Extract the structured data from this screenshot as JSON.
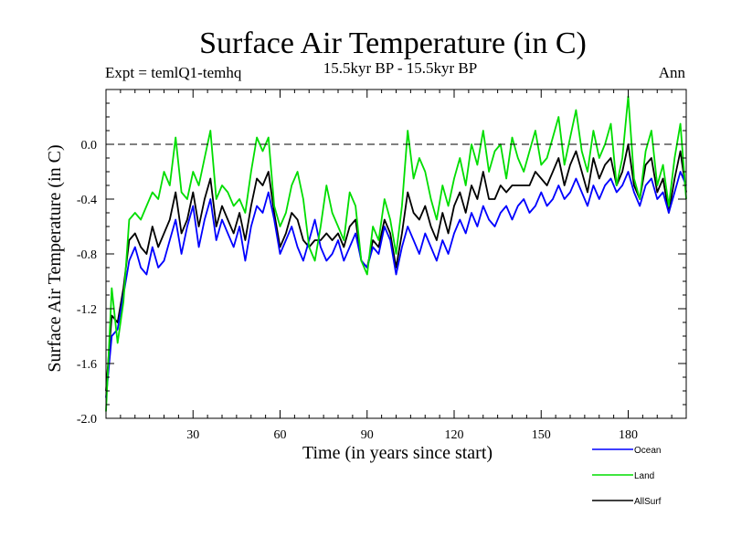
{
  "chart_data": {
    "type": "line",
    "title": "Surface Air Temperature (in C)",
    "left_label": "Expt = temlQ1-temhq",
    "center_label": "15.5kyr BP - 15.5kyr BP",
    "right_label": "Ann",
    "xlabel": "Time (in years since start)",
    "ylabel": "Surface Air Temperature (in C)",
    "xlim": [
      0,
      200
    ],
    "ylim": [
      -2.0,
      0.4
    ],
    "xticks": [
      30,
      60,
      90,
      120,
      150,
      180
    ],
    "xtick_labels": [
      "30",
      "60",
      "90",
      "120",
      "150",
      "180"
    ],
    "yticks": [
      -2.0,
      -1.6,
      -1.2,
      -0.8,
      -0.4,
      0.0
    ],
    "ytick_labels": [
      "-2.0",
      "-1.6",
      "-1.2",
      "-0.8",
      "-0.4",
      "0.0"
    ],
    "reference_line": 0.0,
    "x": [
      0,
      2,
      4,
      6,
      8,
      10,
      12,
      14,
      16,
      18,
      20,
      22,
      24,
      26,
      28,
      30,
      32,
      34,
      36,
      38,
      40,
      42,
      44,
      46,
      48,
      50,
      52,
      54,
      56,
      58,
      60,
      62,
      64,
      66,
      68,
      70,
      72,
      74,
      76,
      78,
      80,
      82,
      84,
      86,
      88,
      90,
      92,
      94,
      96,
      98,
      100,
      102,
      104,
      106,
      108,
      110,
      112,
      114,
      116,
      118,
      120,
      122,
      124,
      126,
      128,
      130,
      132,
      134,
      136,
      138,
      140,
      142,
      144,
      146,
      148,
      150,
      152,
      154,
      156,
      158,
      160,
      162,
      164,
      166,
      168,
      170,
      172,
      174,
      176,
      178,
      180,
      182,
      184,
      186,
      188,
      190,
      192,
      194,
      196,
      198,
      200
    ],
    "series": [
      {
        "name": "Ocean",
        "color": "#0000ff",
        "values": [
          -1.85,
          -1.4,
          -1.35,
          -1.1,
          -0.85,
          -0.75,
          -0.9,
          -0.95,
          -0.75,
          -0.9,
          -0.85,
          -0.7,
          -0.55,
          -0.8,
          -0.6,
          -0.45,
          -0.75,
          -0.55,
          -0.4,
          -0.7,
          -0.55,
          -0.65,
          -0.75,
          -0.6,
          -0.85,
          -0.6,
          -0.45,
          -0.5,
          -0.35,
          -0.55,
          -0.8,
          -0.7,
          -0.6,
          -0.75,
          -0.85,
          -0.7,
          -0.55,
          -0.75,
          -0.85,
          -0.8,
          -0.7,
          -0.85,
          -0.75,
          -0.65,
          -0.85,
          -0.9,
          -0.75,
          -0.8,
          -0.6,
          -0.7,
          -0.95,
          -0.75,
          -0.6,
          -0.7,
          -0.8,
          -0.65,
          -0.75,
          -0.85,
          -0.7,
          -0.8,
          -0.65,
          -0.55,
          -0.65,
          -0.5,
          -0.6,
          -0.45,
          -0.55,
          -0.6,
          -0.5,
          -0.45,
          -0.55,
          -0.45,
          -0.4,
          -0.5,
          -0.45,
          -0.35,
          -0.45,
          -0.4,
          -0.3,
          -0.4,
          -0.35,
          -0.25,
          -0.35,
          -0.45,
          -0.3,
          -0.4,
          -0.3,
          -0.25,
          -0.35,
          -0.3,
          -0.2,
          -0.35,
          -0.45,
          -0.3,
          -0.25,
          -0.4,
          -0.35,
          -0.5,
          -0.35,
          -0.2,
          -0.3
        ]
      },
      {
        "name": "Land",
        "color": "#00dd00",
        "values": [
          -1.95,
          -1.05,
          -1.45,
          -1.15,
          -0.55,
          -0.5,
          -0.55,
          -0.45,
          -0.35,
          -0.4,
          -0.2,
          -0.3,
          0.05,
          -0.35,
          -0.4,
          -0.2,
          -0.3,
          -0.1,
          0.1,
          -0.4,
          -0.3,
          -0.35,
          -0.45,
          -0.4,
          -0.5,
          -0.2,
          0.05,
          -0.05,
          0.05,
          -0.45,
          -0.6,
          -0.5,
          -0.3,
          -0.2,
          -0.4,
          -0.75,
          -0.85,
          -0.6,
          -0.3,
          -0.5,
          -0.6,
          -0.7,
          -0.35,
          -0.45,
          -0.85,
          -0.95,
          -0.6,
          -0.7,
          -0.4,
          -0.55,
          -0.8,
          -0.45,
          0.1,
          -0.25,
          -0.1,
          -0.2,
          -0.4,
          -0.55,
          -0.3,
          -0.45,
          -0.25,
          -0.1,
          -0.3,
          0.0,
          -0.15,
          0.1,
          -0.2,
          -0.05,
          0.0,
          -0.25,
          0.05,
          -0.1,
          -0.2,
          -0.05,
          0.1,
          -0.15,
          -0.1,
          0.05,
          0.2,
          -0.15,
          0.05,
          0.25,
          -0.05,
          -0.2,
          0.1,
          -0.1,
          0.0,
          0.15,
          -0.3,
          -0.1,
          0.35,
          -0.25,
          -0.4,
          -0.05,
          0.1,
          -0.3,
          -0.15,
          -0.45,
          -0.1,
          0.15,
          -0.4
        ]
      },
      {
        "name": "AllSurf",
        "color": "#000000",
        "values": [
          -1.8,
          -1.25,
          -1.3,
          -1.05,
          -0.7,
          -0.65,
          -0.75,
          -0.8,
          -0.6,
          -0.75,
          -0.65,
          -0.55,
          -0.35,
          -0.65,
          -0.55,
          -0.35,
          -0.6,
          -0.4,
          -0.25,
          -0.6,
          -0.45,
          -0.55,
          -0.65,
          -0.5,
          -0.7,
          -0.45,
          -0.25,
          -0.3,
          -0.2,
          -0.5,
          -0.75,
          -0.65,
          -0.5,
          -0.55,
          -0.7,
          -0.75,
          -0.7,
          -0.7,
          -0.65,
          -0.7,
          -0.65,
          -0.75,
          -0.6,
          -0.55,
          -0.85,
          -0.9,
          -0.7,
          -0.75,
          -0.55,
          -0.65,
          -0.9,
          -0.65,
          -0.35,
          -0.5,
          -0.55,
          -0.45,
          -0.6,
          -0.7,
          -0.5,
          -0.65,
          -0.45,
          -0.35,
          -0.5,
          -0.3,
          -0.4,
          -0.2,
          -0.4,
          -0.4,
          -0.3,
          -0.35,
          -0.3,
          -0.3,
          -0.3,
          -0.3,
          -0.2,
          -0.25,
          -0.3,
          -0.2,
          -0.1,
          -0.3,
          -0.15,
          -0.05,
          -0.2,
          -0.35,
          -0.1,
          -0.25,
          -0.15,
          -0.1,
          -0.3,
          -0.2,
          0.0,
          -0.3,
          -0.4,
          -0.15,
          -0.1,
          -0.35,
          -0.25,
          -0.5,
          -0.25,
          -0.05,
          -0.35
        ]
      }
    ],
    "legend": [
      {
        "name": "Ocean",
        "color": "#0000ff"
      },
      {
        "name": "Land",
        "color": "#00dd00"
      },
      {
        "name": "AllSurf",
        "color": "#000000"
      }
    ]
  }
}
